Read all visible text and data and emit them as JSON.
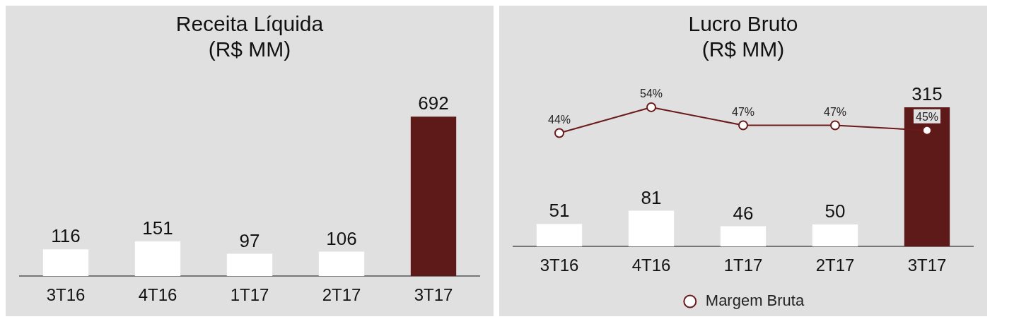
{
  "chart_data": [
    {
      "type": "bar",
      "title": "Receita Líquida\n(R$ MM)",
      "categories": [
        "3T16",
        "4T16",
        "1T17",
        "2T17",
        "3T17"
      ],
      "series": [
        {
          "colors": [
            "#ffffff",
            "#ffffff",
            "#ffffff",
            "#ffffff",
            "#5e1a18"
          ],
          "values": [
            116,
            151,
            97,
            106,
            692
          ]
        }
      ],
      "data_labels": true,
      "grid": false,
      "legend": false,
      "tick_labels": "x"
    },
    {
      "type": "bar",
      "title": "Lucro Bruto\n(R$ MM)",
      "categories": [
        "3T16",
        "4T16",
        "1T17",
        "2T17",
        "3T17"
      ],
      "series": [
        {
          "colors": [
            "#ffffff",
            "#ffffff",
            "#ffffff",
            "#ffffff",
            "#5e1a18"
          ],
          "values": [
            51,
            81,
            46,
            50,
            315
          ]
        },
        {
          "type": "line",
          "name": "Margem Bruta",
          "color": "#6b1a1a",
          "axis": "y2",
          "values": [
            44,
            54,
            47,
            47,
            45
          ],
          "value_labels": [
            "44%",
            "54%",
            "47%",
            "47%",
            "45%"
          ]
        }
      ],
      "data_labels": true,
      "marker": "circle",
      "legend": "bottom",
      "grid": false,
      "tick_labels": "x"
    }
  ]
}
